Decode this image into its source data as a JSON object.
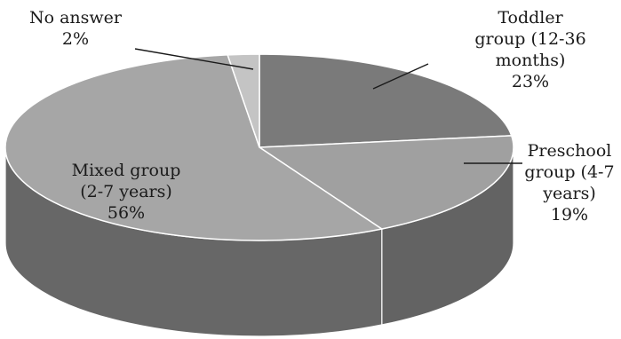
{
  "chart_data": {
    "type": "pie",
    "style": "3d",
    "title": "",
    "slices": [
      {
        "label_lines": [
          "Toddler",
          "group (12-36",
          "months)"
        ],
        "percent_label": "23%",
        "value": 23,
        "color": "#7a7a7a"
      },
      {
        "label_lines": [
          "Preschool",
          "group (4-7",
          "years)"
        ],
        "percent_label": "19%",
        "value": 19,
        "color": "#a0a0a0"
      },
      {
        "label_lines": [
          "Mixed group",
          "(2-7 years)"
        ],
        "percent_label": "56%",
        "value": 56,
        "color": "#a6a6a6"
      },
      {
        "label_lines": [
          "No answer"
        ],
        "percent_label": "2%",
        "value": 2,
        "color": "#c4c4c4"
      }
    ],
    "legend": "none",
    "data_labels": "category and percentage"
  }
}
